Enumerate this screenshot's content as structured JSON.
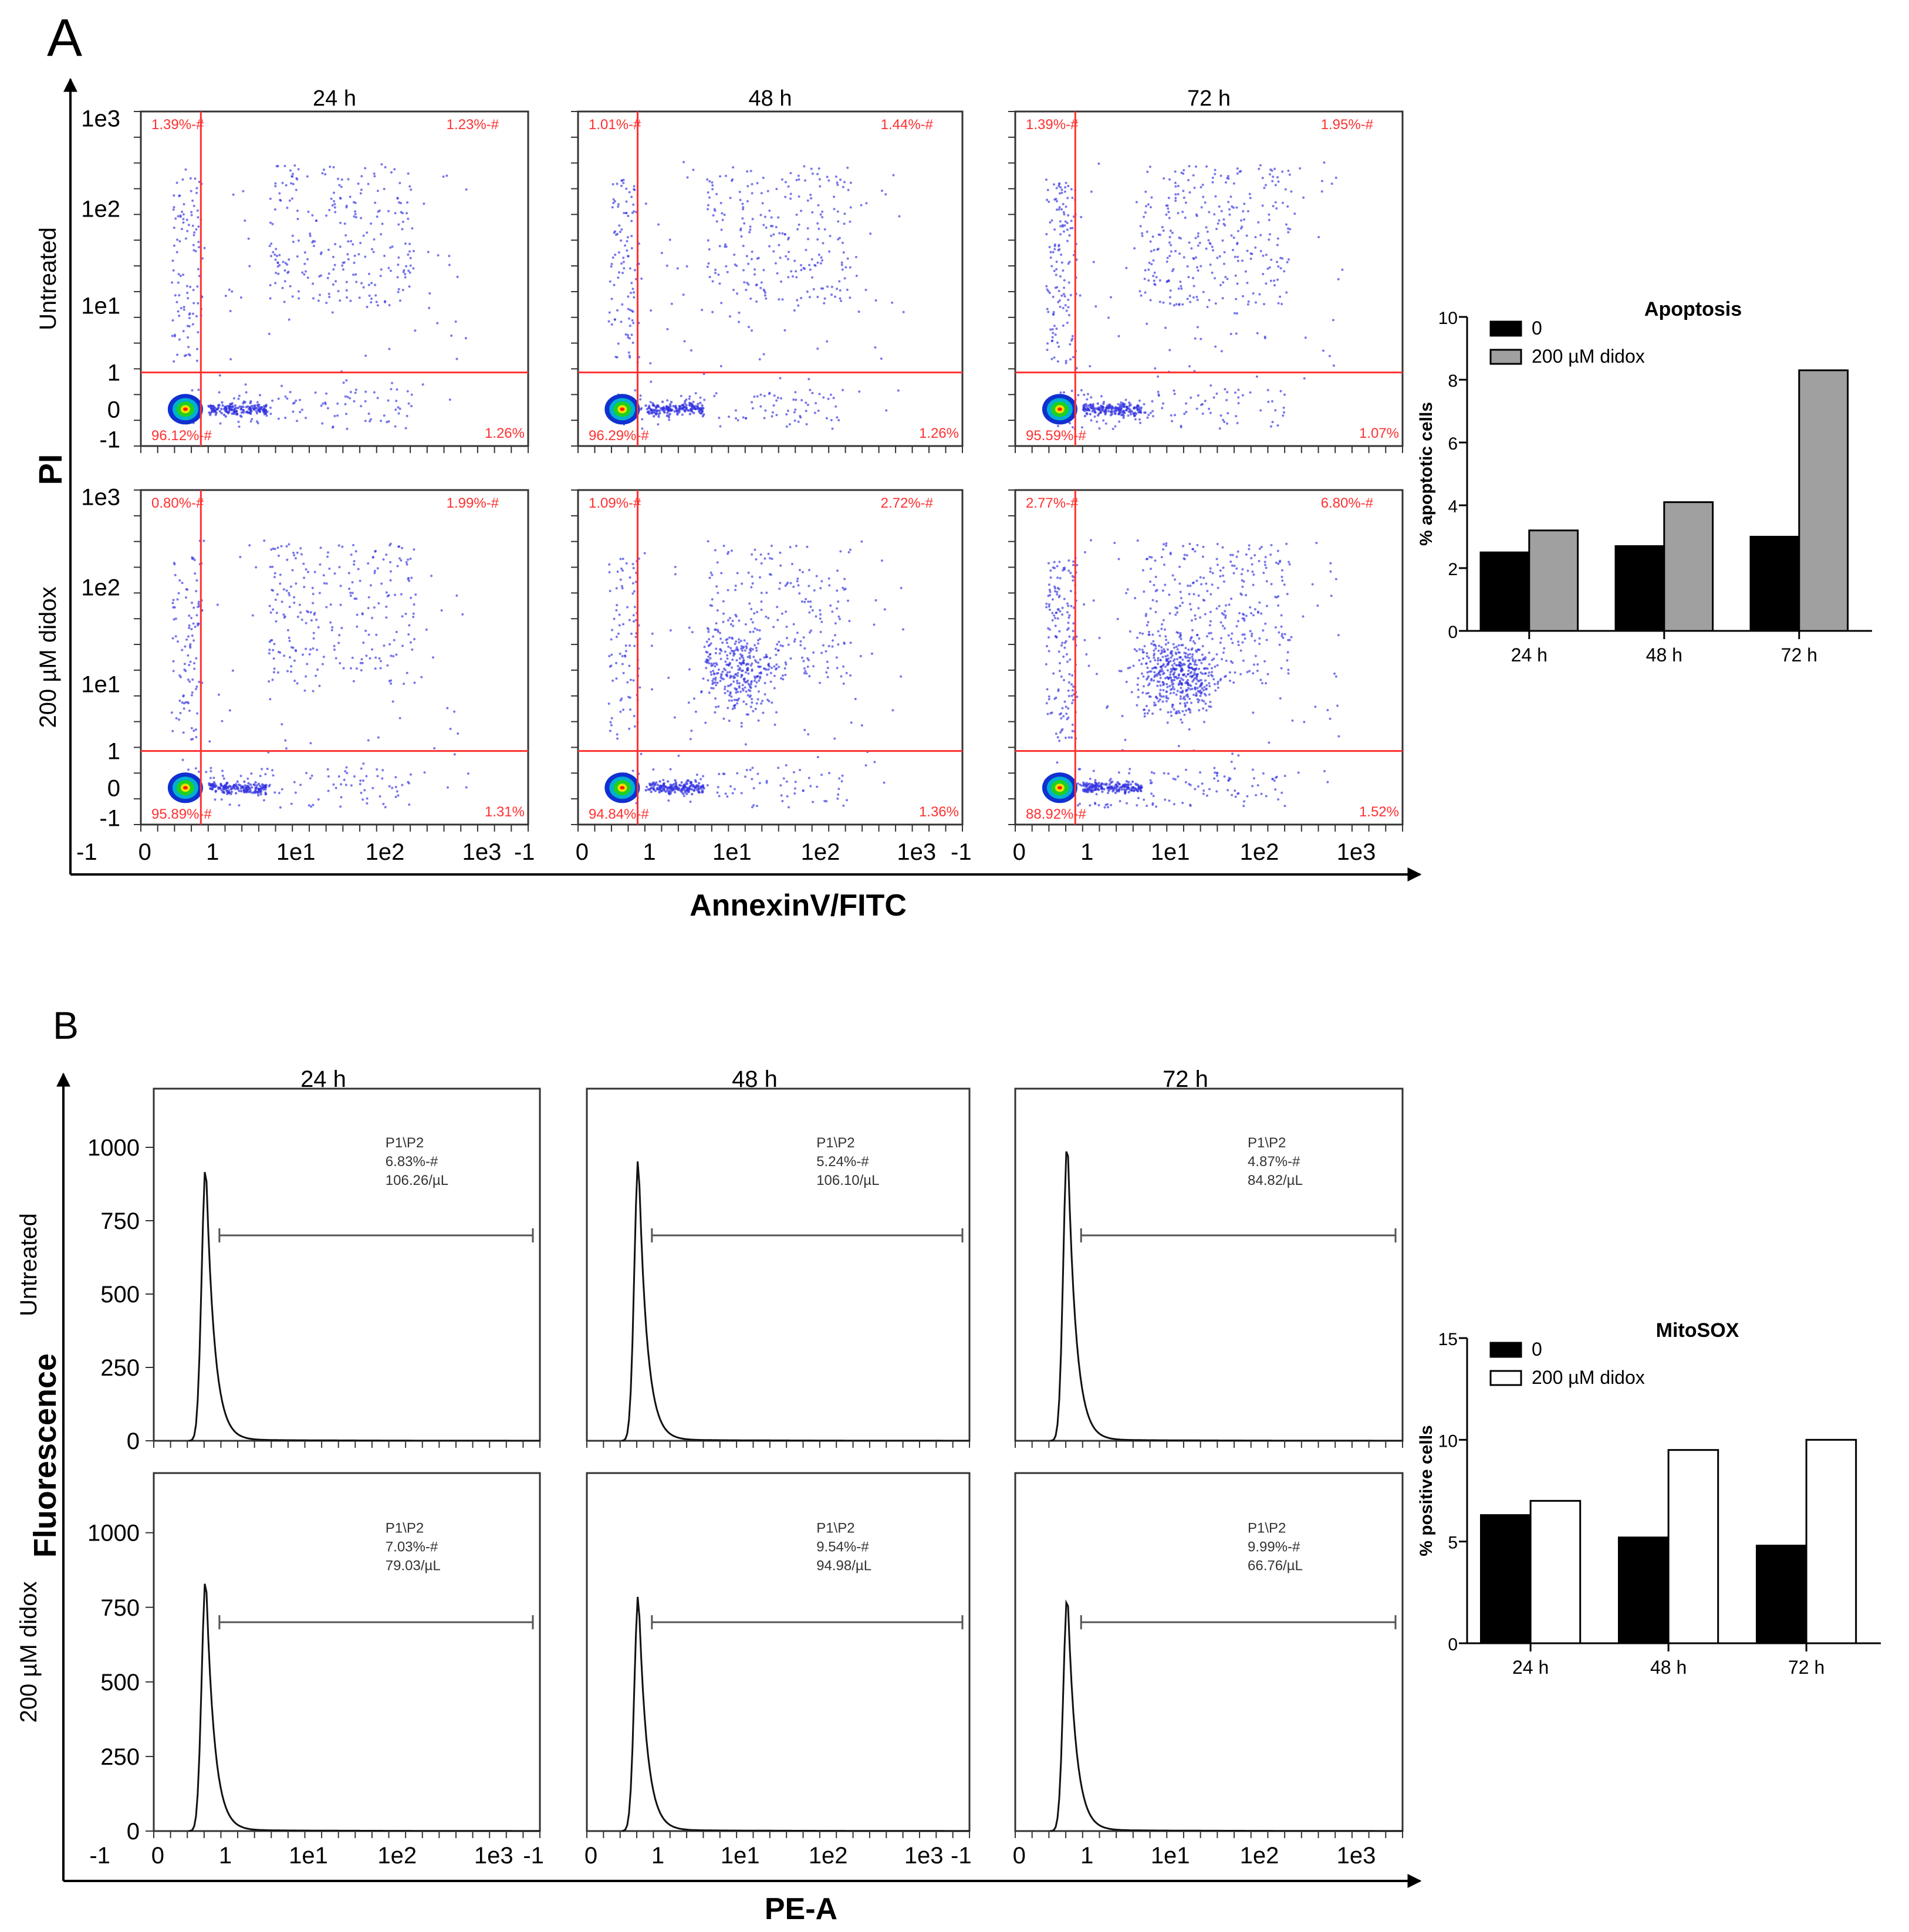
{
  "chart_data": [
    {
      "panel": "A",
      "type": "scatter",
      "description": "Flow cytometry dot plots, AnnexinV/FITC vs PI",
      "columns": [
        "24 h",
        "48 h",
        "72 h"
      ],
      "rows": [
        "Untreated",
        "200 µM didox"
      ],
      "xlabel": "AnnexinV/FITC",
      "ylabel": "PI",
      "x_ticks": [
        "-1",
        "0",
        "1",
        "1e1",
        "1e2",
        "1e3"
      ],
      "y_ticks": [
        "1e3",
        "1e2",
        "1e1",
        "1",
        "0",
        "-1"
      ],
      "quadrants": [
        [
          {
            "ul": "1.39%-#",
            "ur": "1.23%-#",
            "ll": "96.12%-#",
            "lr": "1.26%"
          },
          {
            "ul": "1.01%-#",
            "ur": "1.44%-#",
            "ll": "96.29%-#",
            "lr": "1.26%"
          },
          {
            "ul": "1.39%-#",
            "ur": "1.95%-#",
            "ll": "95.59%-#",
            "lr": "1.07%"
          }
        ],
        [
          {
            "ul": "0.80%-#",
            "ur": "1.99%-#",
            "ll": "95.89%-#",
            "lr": "1.31%"
          },
          {
            "ul": "1.09%-#",
            "ur": "2.72%-#",
            "ll": "94.84%-#",
            "lr": "1.36%"
          },
          {
            "ul": "2.77%-#",
            "ur": "6.80%-#",
            "ll": "88.92%-#",
            "lr": "1.52%"
          }
        ]
      ]
    },
    {
      "panel": "A",
      "type": "bar",
      "title": "Apoptosis",
      "ylabel": "% apoptotic cells",
      "categories": [
        "24 h",
        "48 h",
        "72 h"
      ],
      "ylim": [
        0,
        10
      ],
      "y_ticks": [
        0,
        2,
        4,
        6,
        8,
        10
      ],
      "series": [
        {
          "name": "0",
          "color": "#000000",
          "values": [
            2.5,
            2.7,
            3.0
          ]
        },
        {
          "name": "200 µM didox",
          "color": "#a0a0a0",
          "values": [
            3.2,
            4.1,
            8.3
          ]
        }
      ]
    },
    {
      "panel": "B",
      "type": "area",
      "description": "MitoSOX fluorescence histograms",
      "columns": [
        "24 h",
        "48 h",
        "72 h"
      ],
      "rows": [
        "Untreated",
        "200 µM didox"
      ],
      "xlabel": "PE-A",
      "ylabel": "Fluorescence",
      "x_ticks": [
        "-1",
        "0",
        "1",
        "1e1",
        "1e2",
        "1e3"
      ],
      "y_ticks": [
        "1000",
        "750",
        "500",
        "250",
        "0"
      ],
      "gates": [
        [
          {
            "name": "P1\\P2",
            "pct": "6.83%-#",
            "conc": "106.26/µL",
            "peak": 950
          },
          {
            "name": "P1\\P2",
            "pct": "5.24%-#",
            "conc": "106.10/µL",
            "peak": 970
          },
          {
            "name": "P1\\P2",
            "pct": "4.87%-#",
            "conc": "84.82/µL",
            "peak": 1030
          }
        ],
        [
          {
            "name": "P1\\P2",
            "pct": "7.03%-#",
            "conc": "79.03/µL",
            "peak": 860
          },
          {
            "name": "P1\\P2",
            "pct": "9.54%-#",
            "conc": "94.98/µL",
            "peak": 800
          },
          {
            "name": "P1\\P2",
            "pct": "9.99%-#",
            "conc": "66.76/µL",
            "peak": 800
          }
        ]
      ]
    },
    {
      "panel": "B",
      "type": "bar",
      "title": "MitoSOX",
      "ylabel": "% positive cells",
      "categories": [
        "24 h",
        "48 h",
        "72 h"
      ],
      "ylim": [
        0,
        15
      ],
      "y_ticks": [
        0,
        5,
        10,
        15
      ],
      "series": [
        {
          "name": "0",
          "color": "#000000",
          "values": [
            6.3,
            5.2,
            4.8
          ]
        },
        {
          "name": "200 µM didox",
          "color": "#ffffff",
          "values": [
            7.0,
            9.5,
            10.0
          ]
        }
      ]
    }
  ],
  "colors": {
    "gate": "#ff3030",
    "dots": "#3030e0",
    "axis": "#000000"
  }
}
